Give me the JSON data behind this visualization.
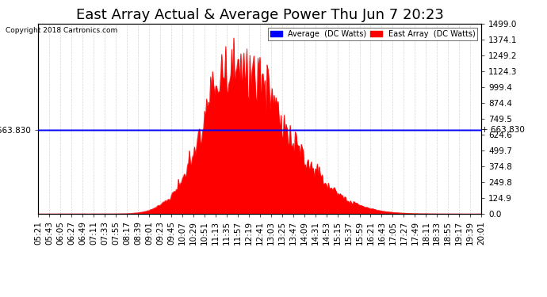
{
  "title": "East Array Actual & Average Power Thu Jun 7 20:23",
  "copyright": "Copyright 2018 Cartronics.com",
  "legend_avg": "Average  (DC Watts)",
  "legend_east": "East Array  (DC Watts)",
  "y_right_ticks": [
    0.0,
    124.9,
    249.8,
    374.8,
    499.7,
    624.6,
    749.5,
    874.4,
    999.4,
    1124.3,
    1249.2,
    1374.1,
    1499.0
  ],
  "y_left_label": "663.830",
  "avg_line_value": 663.83,
  "y_max": 1499.0,
  "y_min": 0.0,
  "background_color": "#ffffff",
  "grid_color": "#cccccc",
  "fill_color": "#ff0000",
  "avg_line_color": "#0000ff",
  "title_fontsize": 13,
  "tick_fontsize": 7.5
}
